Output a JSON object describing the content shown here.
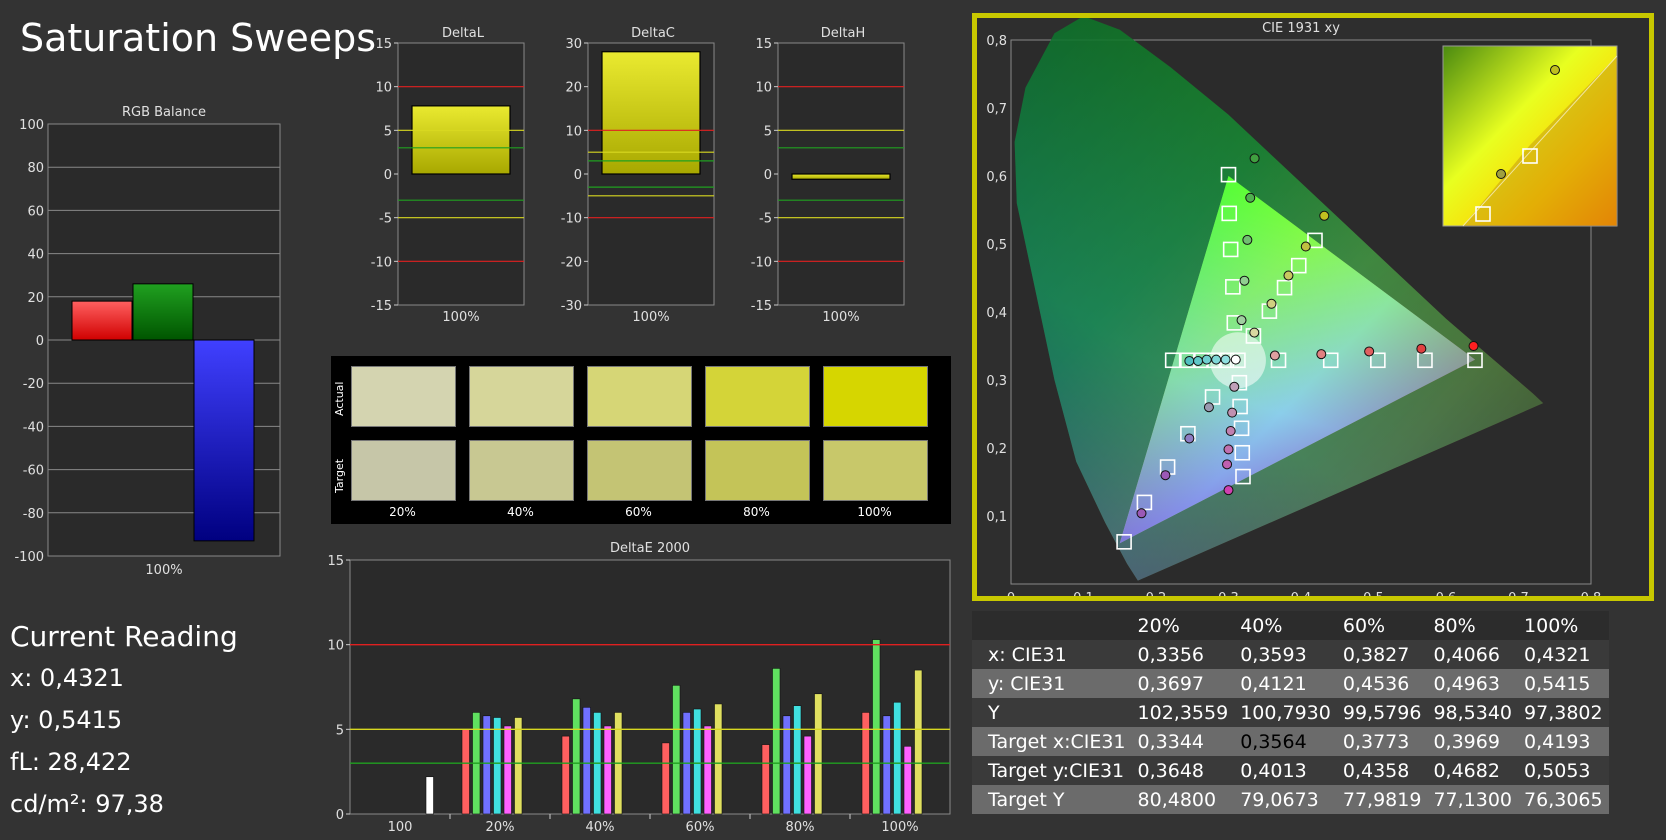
{
  "page": {
    "title": "Saturation Sweeps"
  },
  "rgb_balance": {
    "title": "RGB Balance",
    "ylim": [
      -100,
      100
    ],
    "ticks": [
      100,
      80,
      60,
      40,
      20,
      0,
      -20,
      -40,
      -60,
      -80,
      -100
    ],
    "category": "100%",
    "bars": [
      {
        "name": "R",
        "value": 18,
        "color": "#ff0000"
      },
      {
        "name": "G",
        "value": 26,
        "color": "#008000"
      },
      {
        "name": "B",
        "value": -93,
        "color": "#0000ff"
      }
    ]
  },
  "current_reading": {
    "title": "Current Reading",
    "lines": [
      "x: 0,4321",
      "y: 0,5415",
      "fL: 28,422",
      "cd/m²: 97,38"
    ]
  },
  "chart_data": [
    {
      "type": "bar",
      "title": "DeltaL",
      "categories": [
        "100%"
      ],
      "values": [
        7.8
      ],
      "ylim": [
        -15,
        15
      ],
      "ticks": [
        "15",
        "10",
        "5",
        "0",
        "-5",
        "-10",
        "-15"
      ],
      "lines": [
        {
          "value": 10,
          "color": "#e02020"
        },
        {
          "value": 5,
          "color": "#d8d820"
        },
        {
          "value": 3,
          "color": "#20a020"
        },
        {
          "value": -3,
          "color": "#20a020"
        },
        {
          "value": -5,
          "color": "#d8d820"
        },
        {
          "value": -10,
          "color": "#e02020"
        }
      ]
    },
    {
      "type": "bar",
      "title": "DeltaC",
      "categories": [
        "100%"
      ],
      "values": [
        28
      ],
      "ylim": [
        -30,
        30
      ],
      "ticks": [
        "30",
        "20",
        "10",
        "0",
        "-10",
        "-20",
        "-30"
      ],
      "lines": [
        {
          "value": 10,
          "color": "#e02020"
        },
        {
          "value": 5,
          "color": "#d8d820"
        },
        {
          "value": 3,
          "color": "#20a020"
        },
        {
          "value": -3,
          "color": "#20a020"
        },
        {
          "value": -5,
          "color": "#d8d820"
        },
        {
          "value": -10,
          "color": "#e02020"
        }
      ]
    },
    {
      "type": "bar",
      "title": "DeltaH",
      "categories": [
        "100%"
      ],
      "values": [
        -0.6
      ],
      "ylim": [
        -15,
        15
      ],
      "ticks": [
        "15",
        "10",
        "5",
        "0",
        "-5",
        "-10",
        "-15"
      ],
      "lines": [
        {
          "value": 10,
          "color": "#e02020"
        },
        {
          "value": 5,
          "color": "#d8d820"
        },
        {
          "value": 3,
          "color": "#20a020"
        },
        {
          "value": -3,
          "color": "#20a020"
        },
        {
          "value": -5,
          "color": "#d8d820"
        },
        {
          "value": -10,
          "color": "#e02020"
        }
      ]
    },
    {
      "type": "bar",
      "title": "DeltaE 2000",
      "categories": [
        "100",
        "20%",
        "40%",
        "60%",
        "80%",
        "100%"
      ],
      "ylim": [
        0,
        15
      ],
      "ticks": [
        "15",
        "10",
        "5",
        "0"
      ],
      "lines": [
        {
          "value": 10,
          "color": "#e02020"
        },
        {
          "value": 5,
          "color": "#d8d820"
        },
        {
          "value": 3,
          "color": "#20a020"
        }
      ],
      "series": [
        {
          "color": "#ff6060",
          "values": [
            0,
            5.0,
            4.6,
            4.2,
            4.1,
            6.0
          ]
        },
        {
          "color": "#60e060",
          "values": [
            0,
            6.0,
            6.8,
            7.6,
            8.6,
            10.3
          ]
        },
        {
          "color": "#7070ff",
          "values": [
            0,
            5.8,
            6.3,
            6.0,
            5.8,
            5.8
          ]
        },
        {
          "color": "#40e0e0",
          "values": [
            0,
            5.7,
            6.0,
            6.2,
            6.4,
            6.6
          ]
        },
        {
          "color": "#ff60ff",
          "values": [
            0,
            5.2,
            5.2,
            5.2,
            4.6,
            4.0
          ]
        },
        {
          "color": "#e0e060",
          "values": [
            0,
            5.7,
            6.0,
            6.5,
            7.1,
            8.5
          ]
        },
        {
          "color": "#ffffff",
          "values": [
            2.2,
            0,
            0,
            0,
            0,
            0
          ]
        }
      ]
    },
    {
      "type": "scatter",
      "title": "CIE 1931 xy",
      "xlim": [
        0,
        0.8
      ],
      "ylim": [
        0,
        0.8
      ],
      "xticks": [
        "0",
        "0,1",
        "0,2",
        "0,3",
        "0,4",
        "0,5",
        "0,6",
        "0,7",
        "0,8"
      ],
      "yticks": [
        "0,1",
        "0,2",
        "0,3",
        "0,4",
        "0,5",
        "0,6",
        "0,7",
        "0,8"
      ],
      "targets": [
        [
          0.156,
          0.062
        ],
        [
          0.184,
          0.12
        ],
        [
          0.216,
          0.172
        ],
        [
          0.244,
          0.221
        ],
        [
          0.278,
          0.275
        ],
        [
          0.313,
          0.329
        ],
        [
          0.32,
          0.158
        ],
        [
          0.319,
          0.193
        ],
        [
          0.318,
          0.229
        ],
        [
          0.316,
          0.261
        ],
        [
          0.315,
          0.296
        ],
        [
          0.3,
          0.602
        ],
        [
          0.301,
          0.545
        ],
        [
          0.303,
          0.492
        ],
        [
          0.306,
          0.437
        ],
        [
          0.308,
          0.384
        ],
        [
          0.223,
          0.329
        ],
        [
          0.244,
          0.329
        ],
        [
          0.262,
          0.329
        ],
        [
          0.28,
          0.329
        ],
        [
          0.297,
          0.329
        ],
        [
          0.369,
          0.329
        ],
        [
          0.441,
          0.329
        ],
        [
          0.506,
          0.329
        ],
        [
          0.571,
          0.329
        ],
        [
          0.64,
          0.329
        ],
        [
          0.3344,
          0.3648
        ],
        [
          0.3564,
          0.4013
        ],
        [
          0.3773,
          0.4358
        ],
        [
          0.3969,
          0.4682
        ],
        [
          0.4193,
          0.5053
        ]
      ],
      "measured": [
        {
          "x": 0.18,
          "y": 0.104,
          "c": "#9b59b6"
        },
        {
          "x": 0.213,
          "y": 0.16,
          "c": "#9b59b6"
        },
        {
          "x": 0.246,
          "y": 0.214,
          "c": "#8e7cc3"
        },
        {
          "x": 0.273,
          "y": 0.26,
          "c": "#9a9ab0"
        },
        {
          "x": 0.3,
          "y": 0.138,
          "c": "#d040b0"
        },
        {
          "x": 0.298,
          "y": 0.176,
          "c": "#c060b0"
        },
        {
          "x": 0.3,
          "y": 0.198,
          "c": "#c070b0"
        },
        {
          "x": 0.303,
          "y": 0.225,
          "c": "#c080b0"
        },
        {
          "x": 0.305,
          "y": 0.252,
          "c": "#c090b0"
        },
        {
          "x": 0.308,
          "y": 0.29,
          "c": "#c0a0b8"
        },
        {
          "x": 0.336,
          "y": 0.626,
          "c": "#40a040"
        },
        {
          "x": 0.33,
          "y": 0.568,
          "c": "#50b050"
        },
        {
          "x": 0.326,
          "y": 0.506,
          "c": "#70c070"
        },
        {
          "x": 0.322,
          "y": 0.446,
          "c": "#90d090"
        },
        {
          "x": 0.318,
          "y": 0.388,
          "c": "#a0d0a0"
        },
        {
          "x": 0.246,
          "y": 0.328,
          "c": "#50c0c0"
        },
        {
          "x": 0.258,
          "y": 0.328,
          "c": "#60c8c8"
        },
        {
          "x": 0.27,
          "y": 0.33,
          "c": "#70d0d0"
        },
        {
          "x": 0.283,
          "y": 0.33,
          "c": "#80d8d8"
        },
        {
          "x": 0.296,
          "y": 0.33,
          "c": "#90e0e0"
        },
        {
          "x": 0.31,
          "y": 0.33,
          "c": "#ffffff"
        },
        {
          "x": 0.364,
          "y": 0.336,
          "c": "#e0a0a0"
        },
        {
          "x": 0.428,
          "y": 0.338,
          "c": "#e08080"
        },
        {
          "x": 0.494,
          "y": 0.342,
          "c": "#e06060"
        },
        {
          "x": 0.566,
          "y": 0.346,
          "c": "#e04040"
        },
        {
          "x": 0.638,
          "y": 0.35,
          "c": "#ff2020"
        },
        {
          "x": 0.3356,
          "y": 0.3697,
          "c": "#d8d8a0"
        },
        {
          "x": 0.3593,
          "y": 0.4121,
          "c": "#d0d080"
        },
        {
          "x": 0.3827,
          "y": 0.4536,
          "c": "#c8c860"
        },
        {
          "x": 0.4066,
          "y": 0.4963,
          "c": "#c0c040"
        },
        {
          "x": 0.4321,
          "y": 0.5415,
          "c": "#c0c020"
        }
      ]
    }
  ],
  "swatches": {
    "actual_label": "Actual",
    "target_label": "Target",
    "labels": [
      "20%",
      "40%",
      "60%",
      "80%",
      "100%"
    ],
    "actual": [
      "#d4d4b0",
      "#d6d69a",
      "#d6d676",
      "#d4d438",
      "#d6d600"
    ],
    "target": [
      "#c6c6a8",
      "#c8c892",
      "#c4c474",
      "#c4c458",
      "#c8c86a"
    ]
  },
  "table": {
    "columns": [
      "20%",
      "40%",
      "60%",
      "80%",
      "100%"
    ],
    "rows": [
      {
        "label": "x: CIE31",
        "values": [
          "0,3356",
          "0,3593",
          "0,3827",
          "0,4066",
          "0,4321"
        ]
      },
      {
        "label": "y: CIE31",
        "values": [
          "0,3697",
          "0,4121",
          "0,4536",
          "0,4963",
          "0,5415"
        ]
      },
      {
        "label": "Y",
        "values": [
          "102,3559",
          "100,7930",
          "99,5796",
          "98,5340",
          "97,3802"
        ]
      },
      {
        "label": "Target x:CIE31",
        "values": [
          "0,3344",
          "0,3564",
          "0,3773",
          "0,3969",
          "0,4193"
        ]
      },
      {
        "label": "Target y:CIE31",
        "values": [
          "0,3648",
          "0,4013",
          "0,4358",
          "0,4682",
          "0,5053"
        ]
      },
      {
        "label": "Target Y",
        "values": [
          "80,4800",
          "79,0673",
          "77,9819",
          "77,1300",
          "76,3065"
        ]
      }
    ]
  }
}
